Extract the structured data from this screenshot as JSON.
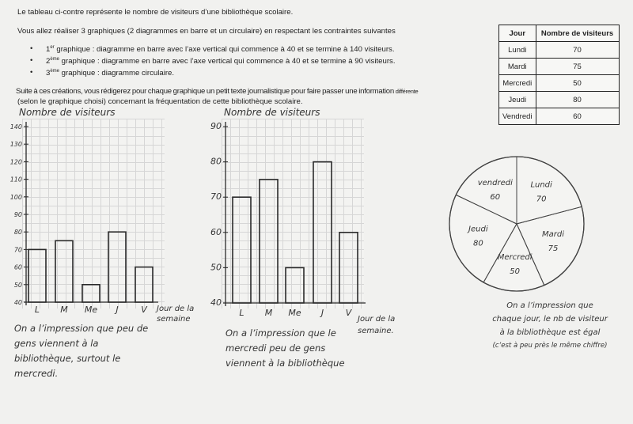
{
  "instructions": {
    "line1": "Le tableau ci-contre représente le nombre de visiteurs d’une bibliothèque scolaire.",
    "line2": "Vous allez réaliser 3 graphiques (2 diagrammes en barre et un circulaire) en respectant les contraintes suivantes",
    "bullets": [
      {
        "num": "1",
        "sup": "er",
        "text": " graphique : diagramme en barre avec l’axe vertical qui commence à 40 et se termine à 140 visiteurs."
      },
      {
        "num": "2",
        "sup": "ème",
        "text": " graphique : diagramme en barre avec l’axe vertical qui commence à 40 et se termine à 90 visiteurs."
      },
      {
        "num": "3",
        "sup": "ème",
        "text": " graphique : diagramme circulaire."
      }
    ],
    "line3": "Suite à ces créations, vous rédigerez pour chaque graphique un petit texte journalistique pour faire passer une information",
    "line3_end": "différente",
    "line4": "(selon le graphique choisi) concernant la fréquentation de cette bibliothèque scolaire."
  },
  "table": {
    "headers": [
      "Jour",
      "Nombre de visiteurs"
    ],
    "rows": [
      [
        "Lundi",
        "70"
      ],
      [
        "Mardi",
        "75"
      ],
      [
        "Mercredi",
        "50"
      ],
      [
        "Jeudi",
        "80"
      ],
      [
        "Vendredi",
        "60"
      ]
    ]
  },
  "chart_data": [
    {
      "type": "bar",
      "ylabel": "Nombre de visiteurs",
      "xlabel": "Jour de la semaine",
      "categories": [
        "L",
        "M",
        "Me",
        "J",
        "V"
      ],
      "values": [
        70,
        75,
        50,
        80,
        60
      ],
      "ylim": [
        40,
        140
      ],
      "yticks": [
        "40",
        "50",
        "60",
        "70",
        "80",
        "90",
        "100",
        "110",
        "120",
        "130",
        "140"
      ],
      "grid": true,
      "comment": "On a l’impression que peu de gens viennent à la bibliothèque, surtout le mercredi."
    },
    {
      "type": "bar",
      "ylabel": "Nombre de visiteurs",
      "xlabel": "Jour de la semaine.",
      "categories": [
        "L",
        "M",
        "Me",
        "J",
        "V"
      ],
      "values": [
        70,
        75,
        50,
        80,
        60
      ],
      "ylim": [
        40,
        90
      ],
      "yticks": [
        "40",
        "50",
        "60",
        "70",
        "80",
        "90"
      ],
      "grid": true,
      "comment": "On a l’impression que le mercredi peu de gens viennent à la bibliothèque"
    },
    {
      "type": "pie",
      "categories": [
        "Lundi",
        "Mardi",
        "Mercredi",
        "Jeudi",
        "vendredi"
      ],
      "values": [
        70,
        75,
        50,
        80,
        60
      ],
      "value_labels": [
        "70",
        "75",
        "50",
        "80",
        "60"
      ],
      "comment_lines": [
        "On a l’impression que",
        "chaque jour, le nb de visiteur",
        "à la bibliothèque est égal",
        "(c’est à peu près le même chiffre)"
      ]
    }
  ]
}
